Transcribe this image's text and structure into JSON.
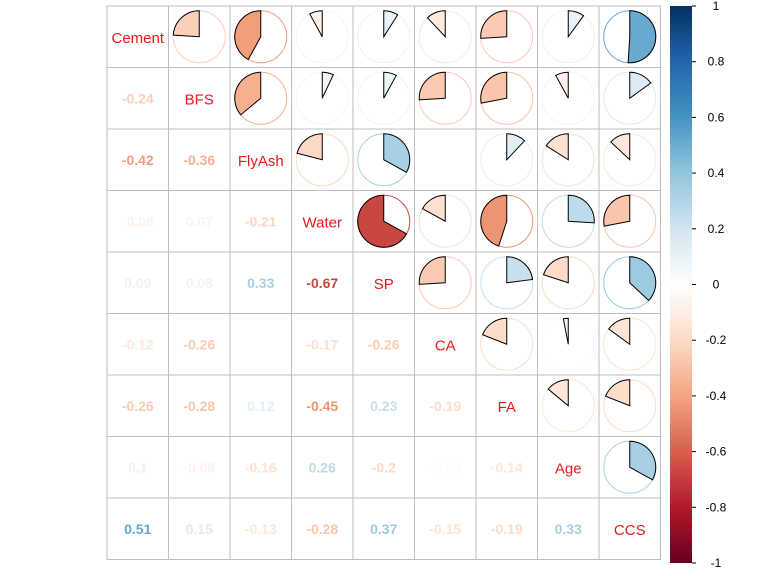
{
  "chart_data": {
    "type": "heatmap",
    "title": "",
    "variables": [
      "Cement",
      "BFS",
      "FlyAsh",
      "Water",
      "SP",
      "CA",
      "FA",
      "Age",
      "CCS"
    ],
    "matrix": [
      [
        1.0,
        -0.24,
        -0.42,
        -0.08,
        0.09,
        -0.12,
        -0.26,
        0.1,
        0.51
      ],
      [
        -0.24,
        1.0,
        -0.36,
        0.07,
        0.08,
        -0.26,
        -0.28,
        -0.08,
        0.15
      ],
      [
        -0.42,
        -0.36,
        1.0,
        -0.21,
        0.33,
        0.0,
        0.12,
        -0.16,
        -0.13
      ],
      [
        -0.08,
        0.07,
        -0.21,
        1.0,
        -0.67,
        -0.17,
        -0.45,
        0.26,
        -0.28
      ],
      [
        0.09,
        0.08,
        0.33,
        -0.67,
        1.0,
        -0.26,
        0.23,
        -0.2,
        0.37
      ],
      [
        -0.12,
        -0.26,
        0.0,
        -0.17,
        -0.26,
        1.0,
        -0.19,
        -0.03,
        -0.15
      ],
      [
        -0.26,
        -0.28,
        0.12,
        -0.45,
        0.23,
        -0.19,
        1.0,
        -0.14,
        -0.19
      ],
      [
        0.1,
        -0.08,
        -0.16,
        0.26,
        -0.2,
        -0.03,
        -0.14,
        1.0,
        0.33
      ],
      [
        0.51,
        0.15,
        -0.13,
        -0.28,
        0.37,
        -0.15,
        -0.19,
        0.33,
        1.0
      ]
    ],
    "lower_labels": [
      [
        "",
        "",
        "",
        "",
        "",
        "",
        "",
        "",
        ""
      ],
      [
        "-0.24",
        "",
        "",
        "",
        "",
        "",
        "",
        "",
        ""
      ],
      [
        "-0.42",
        "-0.36",
        "",
        "",
        "",
        "",
        "",
        "",
        ""
      ],
      [
        "-0.08",
        "0.07",
        "-0.21",
        "",
        "",
        "",
        "",
        "",
        ""
      ],
      [
        "0.09",
        "0.08",
        "0.33",
        "-0.67",
        "",
        "",
        "",
        "",
        ""
      ],
      [
        "-0.12",
        "-0.26",
        "",
        "-0.17",
        "-0.26",
        "",
        "",
        "",
        ""
      ],
      [
        "-0.26",
        "-0.28",
        "0.12",
        "-0.45",
        "0.23",
        "-0.19",
        "",
        "",
        ""
      ],
      [
        "0.1",
        "-0.08",
        "-0.16",
        "0.26",
        "-0.2",
        "-0.03",
        "-0.14",
        "",
        ""
      ],
      [
        "0.51",
        "0.15",
        "-0.13",
        "-0.28",
        "0.37",
        "-0.15",
        "-0.19",
        "0.33",
        ""
      ]
    ],
    "upper_method": "pie",
    "lower_method": "number",
    "diagonal_method": "label",
    "colorbar": {
      "range": [
        -1,
        1
      ],
      "ticks": [
        "1",
        "0.8",
        "0.6",
        "0.4",
        "0.2",
        "0",
        "-0.2",
        "-0.4",
        "-0.6",
        "-0.8",
        "-1"
      ],
      "placement": "right",
      "negative_color": "#67001F",
      "zero_color": "#FFFFFF",
      "positive_color": "#053061"
    },
    "label_color": "#E8191B",
    "grid": true
  }
}
